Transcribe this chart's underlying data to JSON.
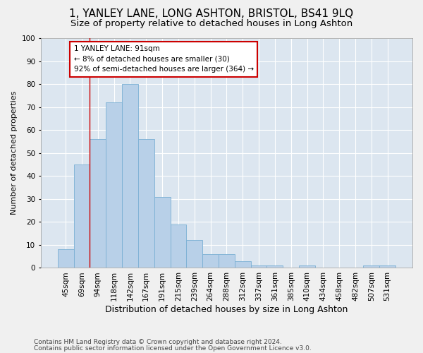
{
  "title": "1, YANLEY LANE, LONG ASHTON, BRISTOL, BS41 9LQ",
  "subtitle": "Size of property relative to detached houses in Long Ashton",
  "xlabel": "Distribution of detached houses by size in Long Ashton",
  "ylabel": "Number of detached properties",
  "categories": [
    "45sqm",
    "69sqm",
    "94sqm",
    "118sqm",
    "142sqm",
    "167sqm",
    "191sqm",
    "215sqm",
    "239sqm",
    "264sqm",
    "288sqm",
    "312sqm",
    "337sqm",
    "361sqm",
    "385sqm",
    "410sqm",
    "434sqm",
    "458sqm",
    "482sqm",
    "507sqm",
    "531sqm"
  ],
  "values": [
    8,
    45,
    56,
    72,
    80,
    56,
    31,
    19,
    12,
    6,
    6,
    3,
    1,
    1,
    0,
    1,
    0,
    0,
    0,
    1,
    1
  ],
  "bar_color": "#b8d0e8",
  "bar_edge_color": "#7aafd4",
  "background_color": "#dce6f0",
  "grid_color": "#ffffff",
  "vline_color": "#cc0000",
  "vline_x": 1.5,
  "annotation_text": "1 YANLEY LANE: 91sqm\n← 8% of detached houses are smaller (30)\n92% of semi-detached houses are larger (364) →",
  "annotation_box_color": "#ffffff",
  "annotation_box_edge": "#cc0000",
  "footer_line1": "Contains HM Land Registry data © Crown copyright and database right 2024.",
  "footer_line2": "Contains public sector information licensed under the Open Government Licence v3.0.",
  "ylim": [
    0,
    100
  ],
  "title_fontsize": 11,
  "subtitle_fontsize": 9.5,
  "xlabel_fontsize": 9,
  "ylabel_fontsize": 8,
  "tick_fontsize": 7.5,
  "annotation_fontsize": 7.5,
  "footer_fontsize": 6.5
}
